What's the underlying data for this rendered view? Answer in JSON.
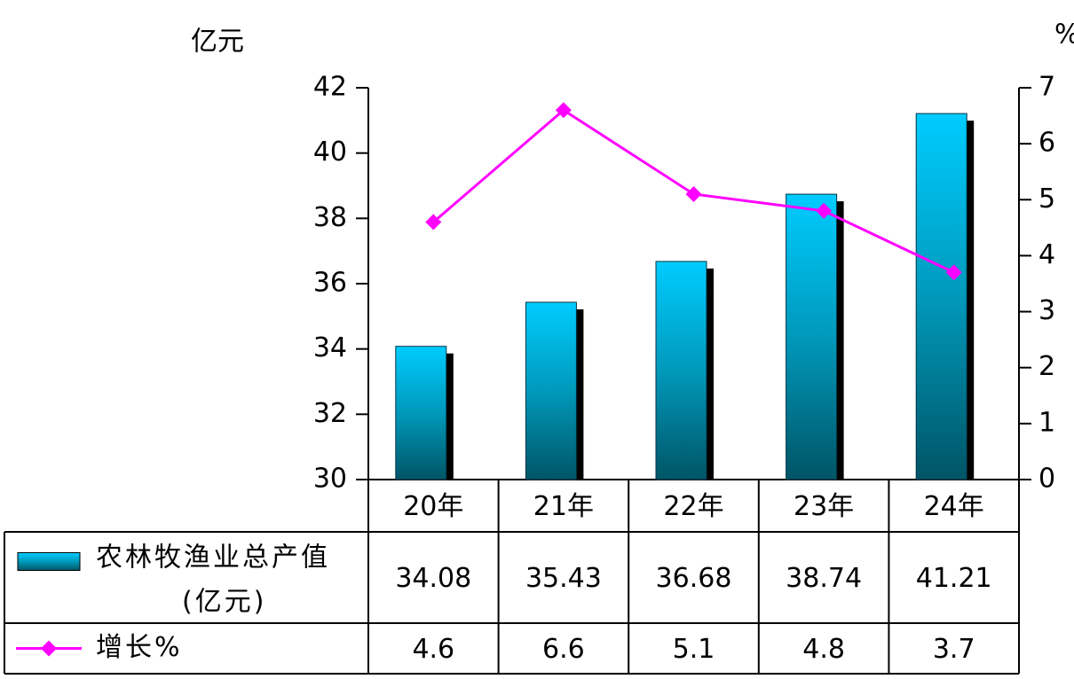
{
  "chart_data": {
    "type": "bar_line_table",
    "y_unit": "亿元",
    "y2_unit": "%",
    "categories": [
      "20年",
      "21年",
      "22年",
      "23年",
      "24年"
    ],
    "ylim": [
      30,
      42
    ],
    "yticks": [
      30,
      32,
      34,
      36,
      38,
      40,
      42
    ],
    "y2lim": [
      0,
      7
    ],
    "y2ticks": [
      0,
      1,
      2,
      3,
      4,
      5,
      6,
      7
    ],
    "series": [
      {
        "name": "农林牧渔业总产值\n(亿元)",
        "type": "bar",
        "color": "#00ccff",
        "values": [
          34.08,
          35.43,
          36.68,
          38.74,
          41.21
        ]
      },
      {
        "name": "增长%",
        "type": "line",
        "axis": "y2",
        "color": "#ff00ff",
        "values": [
          4.6,
          6.6,
          5.1,
          4.8,
          3.7
        ]
      }
    ]
  }
}
